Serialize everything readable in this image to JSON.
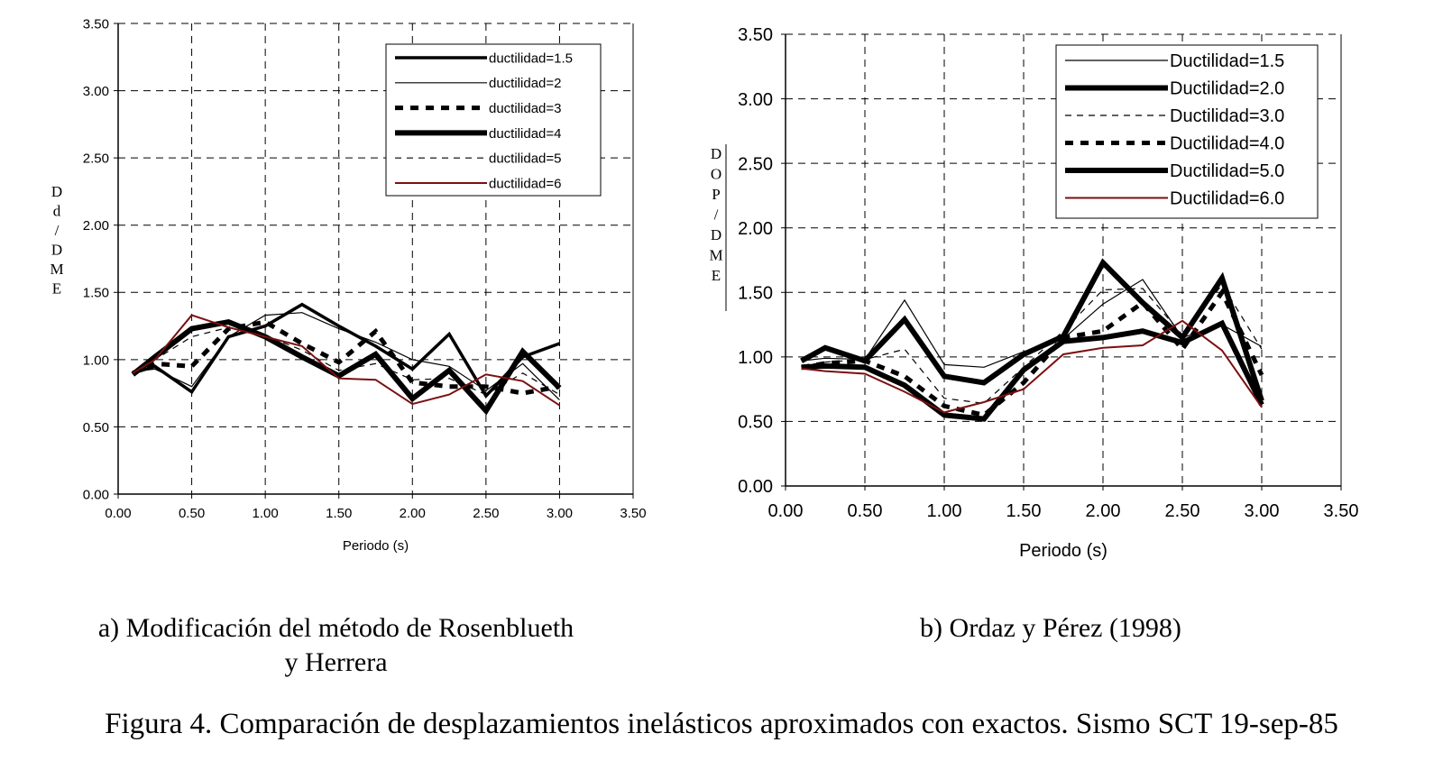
{
  "chart_data": [
    {
      "type": "line",
      "xlabel": "Periodo (s)",
      "ylabel": "Dd/DME",
      "ylabel_chars": [
        "D",
        "d",
        "/",
        "D",
        "M",
        "E"
      ],
      "xlim": [
        0,
        3.5
      ],
      "ylim": [
        0,
        3.5
      ],
      "xticks": [
        "0.00",
        "0.50",
        "1.00",
        "1.50",
        "2.00",
        "2.50",
        "3.00",
        "3.50"
      ],
      "yticks": [
        "0.00",
        "0.50",
        "1.00",
        "1.50",
        "2.00",
        "2.50",
        "3.00",
        "3.50"
      ],
      "grid": true,
      "legend_position": "top-right",
      "x": [
        0.1,
        0.25,
        0.5,
        0.75,
        1.0,
        1.25,
        1.5,
        1.75,
        2.0,
        2.25,
        2.5,
        2.75,
        3.0
      ],
      "series": [
        {
          "name": "ductilidad=1.5",
          "color": "#000000",
          "style": "medium",
          "values": [
            0.9,
            0.95,
            0.76,
            1.17,
            1.25,
            1.41,
            1.25,
            1.1,
            0.93,
            1.19,
            0.73,
            1.02,
            1.12
          ]
        },
        {
          "name": "ductilidad=2",
          "color": "#000000",
          "style": "thin",
          "values": [
            0.91,
            0.93,
            0.8,
            1.17,
            1.33,
            1.35,
            1.23,
            1.13,
            1.0,
            0.95,
            0.77,
            0.97,
            0.7
          ]
        },
        {
          "name": "ductilidad=3",
          "color": "#000000",
          "style": "dotted",
          "values": [
            0.9,
            0.97,
            0.95,
            1.23,
            1.28,
            1.12,
            0.98,
            1.21,
            0.83,
            0.8,
            0.8,
            0.75,
            0.8
          ]
        },
        {
          "name": "ductilidad=4",
          "color": "#000000",
          "style": "thick",
          "values": [
            0.89,
            1.02,
            1.23,
            1.28,
            1.17,
            1.02,
            0.88,
            1.04,
            0.71,
            0.92,
            0.62,
            1.06,
            0.79
          ]
        },
        {
          "name": "ductilidad=5",
          "color": "#000000",
          "style": "dashed",
          "values": [
            0.9,
            1.0,
            1.17,
            1.24,
            1.18,
            1.07,
            0.92,
            0.97,
            0.85,
            0.86,
            0.74,
            0.9,
            0.74
          ]
        },
        {
          "name": "ductilidad=6",
          "color": "#7a1010",
          "style": "red",
          "values": [
            0.9,
            1.0,
            1.33,
            1.24,
            1.17,
            1.1,
            0.86,
            0.85,
            0.67,
            0.74,
            0.89,
            0.84,
            0.66
          ]
        }
      ]
    },
    {
      "type": "line",
      "xlabel": "Periodo (s)",
      "ylabel": "DOP/DME",
      "ylabel_chars": [
        "D",
        "O",
        "P",
        "/",
        "D",
        "M",
        "E"
      ],
      "xlim": [
        0,
        3.5
      ],
      "ylim": [
        0,
        3.5
      ],
      "xticks": [
        "0.00",
        "0.50",
        "1.00",
        "1.50",
        "2.00",
        "2.50",
        "3.00",
        "3.50"
      ],
      "yticks": [
        "0.00",
        "0.50",
        "1.00",
        "1.50",
        "2.00",
        "2.50",
        "3.00",
        "3.50"
      ],
      "grid": true,
      "legend_position": "top-right",
      "x": [
        0.1,
        0.25,
        0.5,
        0.75,
        1.0,
        1.25,
        1.5,
        1.75,
        2.0,
        2.25,
        2.5,
        2.75,
        3.0
      ],
      "series": [
        {
          "name": "Ductilidad=1.5",
          "color": "#000000",
          "style": "thin",
          "values": [
            0.97,
            0.99,
            0.98,
            1.44,
            0.94,
            0.92,
            1.04,
            1.14,
            1.41,
            1.6,
            1.15,
            1.25,
            1.08
          ]
        },
        {
          "name": "Ductilidad=2.0",
          "color": "#000000",
          "style": "thick",
          "values": [
            0.97,
            1.07,
            0.97,
            1.29,
            0.85,
            0.8,
            1.02,
            1.16,
            1.73,
            1.42,
            1.15,
            1.61,
            0.66
          ]
        },
        {
          "name": "Ductilidad=3.0",
          "color": "#000000",
          "style": "dashed",
          "values": [
            0.93,
            0.96,
            0.98,
            1.06,
            0.68,
            0.64,
            0.92,
            1.2,
            1.52,
            1.53,
            1.17,
            1.56,
            1.06
          ]
        },
        {
          "name": "Ductilidad=4.0",
          "color": "#000000",
          "style": "dotted",
          "values": [
            0.92,
            0.95,
            0.97,
            0.85,
            0.62,
            0.55,
            0.8,
            1.15,
            1.2,
            1.42,
            1.06,
            1.5,
            0.86
          ]
        },
        {
          "name": "Ductilidad=5.0",
          "color": "#000000",
          "style": "thick",
          "values": [
            0.92,
            0.93,
            0.92,
            0.78,
            0.55,
            0.52,
            0.9,
            1.12,
            1.15,
            1.2,
            1.11,
            1.26,
            0.63
          ]
        },
        {
          "name": "Ductilidad=6.0",
          "color": "#7a1010",
          "style": "red",
          "values": [
            0.91,
            0.89,
            0.87,
            0.73,
            0.57,
            0.65,
            0.75,
            1.02,
            1.07,
            1.09,
            1.28,
            1.05,
            0.61
          ]
        }
      ]
    }
  ],
  "captions": {
    "a_line1": "a) Modificación del método de Rosenblueth",
    "a_line2": "y Herrera",
    "b": "b) Ordaz y Pérez (1998)",
    "figure": "Figura 4.  Comparación de desplazamientos inelásticos aproximados con exactos. Sismo SCT 19-sep-85"
  }
}
